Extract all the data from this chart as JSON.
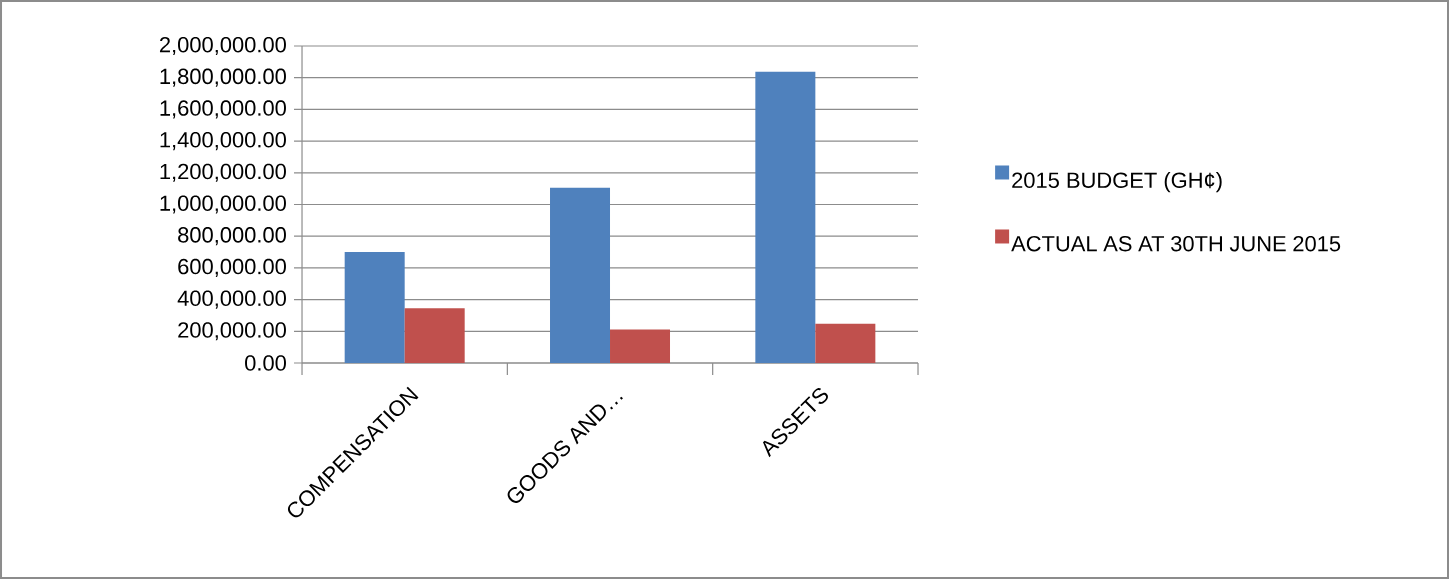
{
  "chart_data": {
    "type": "bar",
    "categories": [
      "COMPENSATION",
      "GOODS AND…",
      "ASSETS"
    ],
    "series": [
      {
        "name": "2015 BUDGET (GH¢)",
        "color": "#4f81bd",
        "values": [
          700000,
          1105000,
          1838000
        ]
      },
      {
        "name": "ACTUAL AS AT 30TH JUNE 2015",
        "color": "#c0504d",
        "values": [
          345000,
          212000,
          247000
        ]
      }
    ],
    "ylim": [
      0,
      2000000
    ],
    "yticks": [
      {
        "value": 0,
        "label": "0.00"
      },
      {
        "value": 200000,
        "label": "200,000.00"
      },
      {
        "value": 400000,
        "label": "400,000.00"
      },
      {
        "value": 600000,
        "label": "600,000.00"
      },
      {
        "value": 800000,
        "label": "800,000.00"
      },
      {
        "value": 1000000,
        "label": "1,000,000.00"
      },
      {
        "value": 1200000,
        "label": "1,200,000.00"
      },
      {
        "value": 1400000,
        "label": "1,400,000.00"
      },
      {
        "value": 1600000,
        "label": "1,600,000.00"
      },
      {
        "value": 1800000,
        "label": "1,800,000.00"
      },
      {
        "value": 2000000,
        "label": "2,000,000.00"
      }
    ],
    "grid": "y",
    "legend": "right"
  }
}
